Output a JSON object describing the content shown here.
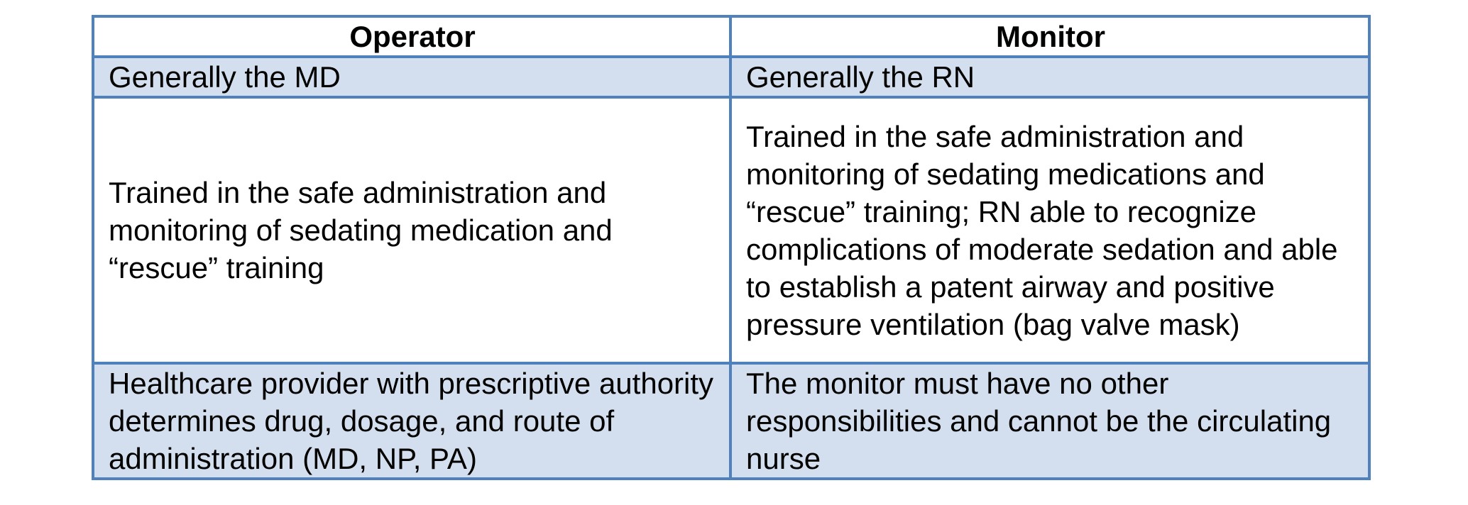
{
  "table": {
    "headers": [
      "Operator",
      "Monitor"
    ],
    "rows": [
      {
        "operator": "Generally the MD",
        "monitor": "Generally the RN"
      },
      {
        "operator": "Trained in the safe administration and monitoring of sedating medication and “rescue” training",
        "monitor": "Trained in the safe administration and monitoring of sedating medications and “rescue” training; RN able to recognize complications of moderate sedation and able to establish a patent airway and positive pressure ventilation (bag valve mask)"
      },
      {
        "operator": "Healthcare provider with prescriptive authority determines drug, dosage, and route of administration (MD, NP, PA)",
        "monitor": "The monitor must have no other responsibilities and cannot be the circulating nurse"
      }
    ]
  },
  "colors": {
    "border": "#4f81bd",
    "shaded_row": "#d3dfee",
    "plain_row": "#ffffff"
  }
}
